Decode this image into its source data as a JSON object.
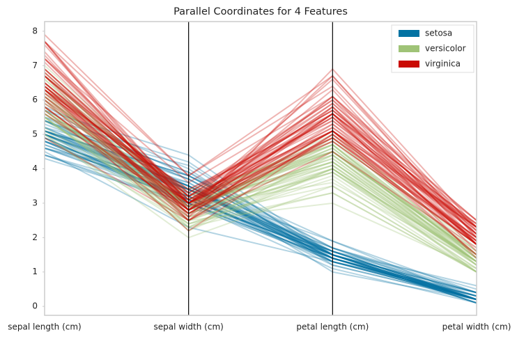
{
  "chart_data": {
    "type": "parallel",
    "title": "Parallel Coordinates for 4 Features",
    "dimensions": [
      "sepal length (cm)",
      "sepal width (cm)",
      "petal length (cm)",
      "petal width (cm)"
    ],
    "ylim": [
      -0.26,
      8.28
    ],
    "yticks": [
      0,
      1,
      2,
      3,
      4,
      5,
      6,
      7,
      8
    ],
    "legend": "upper right",
    "series": [
      {
        "name": "setosa",
        "color": "#0272a2",
        "values": [
          [
            5.1,
            3.5,
            1.4,
            0.2
          ],
          [
            4.9,
            3.0,
            1.4,
            0.2
          ],
          [
            4.7,
            3.2,
            1.3,
            0.2
          ],
          [
            4.6,
            3.1,
            1.5,
            0.2
          ],
          [
            5.0,
            3.6,
            1.4,
            0.2
          ],
          [
            5.4,
            3.9,
            1.7,
            0.4
          ],
          [
            4.6,
            3.4,
            1.4,
            0.3
          ],
          [
            5.0,
            3.4,
            1.5,
            0.2
          ],
          [
            4.4,
            2.9,
            1.4,
            0.2
          ],
          [
            4.9,
            3.1,
            1.5,
            0.1
          ],
          [
            5.4,
            3.7,
            1.5,
            0.2
          ],
          [
            4.8,
            3.4,
            1.6,
            0.2
          ],
          [
            4.8,
            3.0,
            1.4,
            0.1
          ],
          [
            4.3,
            3.0,
            1.1,
            0.1
          ],
          [
            5.8,
            4.0,
            1.2,
            0.2
          ],
          [
            5.7,
            4.4,
            1.5,
            0.4
          ],
          [
            5.4,
            3.9,
            1.3,
            0.4
          ],
          [
            5.1,
            3.5,
            1.4,
            0.3
          ],
          [
            5.7,
            3.8,
            1.7,
            0.3
          ],
          [
            5.1,
            3.8,
            1.5,
            0.3
          ],
          [
            5.4,
            3.4,
            1.7,
            0.2
          ],
          [
            5.1,
            3.7,
            1.5,
            0.4
          ],
          [
            4.6,
            3.6,
            1.0,
            0.2
          ],
          [
            5.1,
            3.3,
            1.7,
            0.5
          ],
          [
            4.8,
            3.4,
            1.9,
            0.2
          ],
          [
            5.0,
            3.0,
            1.6,
            0.2
          ],
          [
            5.0,
            3.4,
            1.6,
            0.4
          ],
          [
            5.2,
            3.5,
            1.5,
            0.2
          ],
          [
            5.2,
            3.4,
            1.4,
            0.2
          ],
          [
            4.7,
            3.2,
            1.6,
            0.2
          ],
          [
            4.8,
            3.1,
            1.6,
            0.2
          ],
          [
            5.4,
            3.4,
            1.5,
            0.4
          ],
          [
            5.2,
            4.1,
            1.5,
            0.1
          ],
          [
            5.5,
            4.2,
            1.4,
            0.2
          ],
          [
            4.9,
            3.1,
            1.5,
            0.1
          ],
          [
            5.0,
            3.2,
            1.2,
            0.2
          ],
          [
            5.5,
            3.5,
            1.3,
            0.2
          ],
          [
            4.9,
            3.1,
            1.5,
            0.1
          ],
          [
            4.4,
            3.0,
            1.3,
            0.2
          ],
          [
            5.1,
            3.4,
            1.5,
            0.2
          ],
          [
            5.0,
            3.5,
            1.3,
            0.3
          ],
          [
            4.5,
            2.3,
            1.3,
            0.3
          ],
          [
            4.4,
            3.2,
            1.3,
            0.2
          ],
          [
            5.0,
            3.5,
            1.6,
            0.6
          ],
          [
            5.1,
            3.8,
            1.9,
            0.4
          ],
          [
            4.8,
            3.0,
            1.4,
            0.3
          ],
          [
            5.1,
            3.8,
            1.6,
            0.2
          ],
          [
            4.6,
            3.2,
            1.4,
            0.2
          ],
          [
            5.3,
            3.7,
            1.5,
            0.2
          ],
          [
            5.0,
            3.3,
            1.4,
            0.2
          ]
        ]
      },
      {
        "name": "versicolor",
        "color": "#9fc377",
        "values": [
          [
            7.0,
            3.2,
            4.7,
            1.4
          ],
          [
            6.4,
            3.2,
            4.5,
            1.5
          ],
          [
            6.9,
            3.1,
            4.9,
            1.5
          ],
          [
            5.5,
            2.3,
            4.0,
            1.3
          ],
          [
            6.5,
            2.8,
            4.6,
            1.5
          ],
          [
            5.7,
            2.8,
            4.5,
            1.3
          ],
          [
            6.3,
            3.3,
            4.7,
            1.6
          ],
          [
            4.9,
            2.4,
            3.3,
            1.0
          ],
          [
            6.6,
            2.9,
            4.6,
            1.3
          ],
          [
            5.2,
            2.7,
            3.9,
            1.4
          ],
          [
            5.0,
            2.0,
            3.5,
            1.0
          ],
          [
            5.9,
            3.0,
            4.2,
            1.5
          ],
          [
            6.0,
            2.2,
            4.0,
            1.0
          ],
          [
            6.1,
            2.9,
            4.7,
            1.4
          ],
          [
            5.6,
            2.9,
            3.6,
            1.3
          ],
          [
            6.7,
            3.1,
            4.4,
            1.4
          ],
          [
            5.6,
            3.0,
            4.5,
            1.5
          ],
          [
            5.8,
            2.7,
            4.1,
            1.0
          ],
          [
            6.2,
            2.2,
            4.5,
            1.5
          ],
          [
            5.6,
            2.5,
            3.9,
            1.1
          ],
          [
            5.9,
            3.2,
            4.8,
            1.8
          ],
          [
            6.1,
            2.8,
            4.0,
            1.3
          ],
          [
            6.3,
            2.5,
            4.9,
            1.5
          ],
          [
            6.1,
            2.8,
            4.7,
            1.2
          ],
          [
            6.4,
            2.9,
            4.3,
            1.3
          ],
          [
            6.6,
            3.0,
            4.4,
            1.4
          ],
          [
            6.8,
            2.8,
            4.8,
            1.4
          ],
          [
            6.7,
            3.0,
            5.0,
            1.7
          ],
          [
            6.0,
            2.9,
            4.5,
            1.5
          ],
          [
            5.7,
            2.6,
            3.5,
            1.0
          ],
          [
            5.5,
            2.4,
            3.8,
            1.1
          ],
          [
            5.5,
            2.4,
            3.7,
            1.0
          ],
          [
            5.8,
            2.7,
            3.9,
            1.2
          ],
          [
            6.0,
            2.7,
            5.1,
            1.6
          ],
          [
            5.4,
            3.0,
            4.5,
            1.5
          ],
          [
            6.0,
            3.4,
            4.5,
            1.6
          ],
          [
            6.7,
            3.1,
            4.7,
            1.5
          ],
          [
            6.3,
            2.3,
            4.4,
            1.3
          ],
          [
            5.6,
            3.0,
            4.1,
            1.3
          ],
          [
            5.5,
            2.5,
            4.0,
            1.3
          ],
          [
            5.5,
            2.6,
            4.4,
            1.2
          ],
          [
            6.1,
            3.0,
            4.6,
            1.4
          ],
          [
            5.8,
            2.6,
            4.0,
            1.2
          ],
          [
            5.0,
            2.3,
            3.3,
            1.0
          ],
          [
            5.6,
            2.7,
            4.2,
            1.3
          ],
          [
            5.7,
            3.0,
            4.2,
            1.2
          ],
          [
            5.7,
            2.9,
            4.2,
            1.3
          ],
          [
            6.2,
            2.9,
            4.3,
            1.3
          ],
          [
            5.1,
            2.5,
            3.0,
            1.1
          ],
          [
            5.7,
            2.8,
            4.1,
            1.3
          ]
        ]
      },
      {
        "name": "virginica",
        "color": "#ca0b03",
        "values": [
          [
            6.3,
            3.3,
            6.0,
            2.5
          ],
          [
            5.8,
            2.7,
            5.1,
            1.9
          ],
          [
            7.1,
            3.0,
            5.9,
            2.1
          ],
          [
            6.3,
            2.9,
            5.6,
            1.8
          ],
          [
            6.5,
            3.0,
            5.8,
            2.2
          ],
          [
            7.6,
            3.0,
            6.6,
            2.1
          ],
          [
            4.9,
            2.5,
            4.5,
            1.7
          ],
          [
            7.3,
            2.9,
            6.3,
            1.8
          ],
          [
            6.7,
            2.5,
            5.8,
            1.8
          ],
          [
            7.2,
            3.6,
            6.1,
            2.5
          ],
          [
            6.5,
            3.2,
            5.1,
            2.0
          ],
          [
            6.4,
            2.7,
            5.3,
            1.9
          ],
          [
            6.8,
            3.0,
            5.5,
            2.1
          ],
          [
            5.7,
            2.5,
            5.0,
            2.0
          ],
          [
            5.8,
            2.8,
            5.1,
            2.4
          ],
          [
            6.4,
            3.2,
            5.3,
            2.3
          ],
          [
            6.5,
            3.0,
            5.5,
            1.8
          ],
          [
            7.7,
            3.8,
            6.7,
            2.2
          ],
          [
            7.7,
            2.6,
            6.9,
            2.3
          ],
          [
            6.0,
            2.2,
            5.0,
            1.5
          ],
          [
            6.9,
            3.2,
            5.7,
            2.3
          ],
          [
            5.6,
            2.8,
            4.9,
            2.0
          ],
          [
            7.7,
            2.8,
            6.7,
            2.0
          ],
          [
            6.3,
            2.7,
            4.9,
            1.8
          ],
          [
            6.7,
            3.3,
            5.7,
            2.1
          ],
          [
            7.2,
            3.2,
            6.0,
            1.8
          ],
          [
            6.2,
            2.8,
            4.8,
            1.8
          ],
          [
            6.1,
            3.0,
            4.9,
            1.8
          ],
          [
            6.4,
            2.8,
            5.6,
            2.1
          ],
          [
            7.2,
            3.0,
            5.8,
            1.6
          ],
          [
            7.4,
            2.8,
            6.1,
            1.9
          ],
          [
            7.9,
            3.8,
            6.4,
            2.0
          ],
          [
            6.4,
            2.8,
            5.6,
            2.2
          ],
          [
            6.3,
            2.8,
            5.1,
            1.5
          ],
          [
            6.1,
            2.6,
            5.6,
            1.4
          ],
          [
            7.7,
            3.0,
            6.1,
            2.3
          ],
          [
            6.3,
            3.4,
            5.6,
            2.4
          ],
          [
            6.4,
            3.1,
            5.5,
            1.8
          ],
          [
            6.0,
            3.0,
            4.8,
            1.8
          ],
          [
            6.9,
            3.1,
            5.4,
            2.1
          ],
          [
            6.7,
            3.1,
            5.6,
            2.4
          ],
          [
            6.9,
            3.1,
            5.1,
            2.3
          ],
          [
            5.8,
            2.7,
            5.1,
            1.9
          ],
          [
            6.8,
            3.2,
            5.9,
            2.3
          ],
          [
            6.7,
            3.3,
            5.7,
            2.5
          ],
          [
            6.7,
            3.0,
            5.2,
            2.3
          ],
          [
            6.3,
            2.5,
            5.0,
            1.9
          ],
          [
            6.5,
            3.0,
            5.2,
            2.0
          ],
          [
            6.2,
            3.4,
            5.4,
            2.3
          ],
          [
            5.9,
            3.0,
            5.1,
            1.8
          ]
        ]
      }
    ]
  }
}
